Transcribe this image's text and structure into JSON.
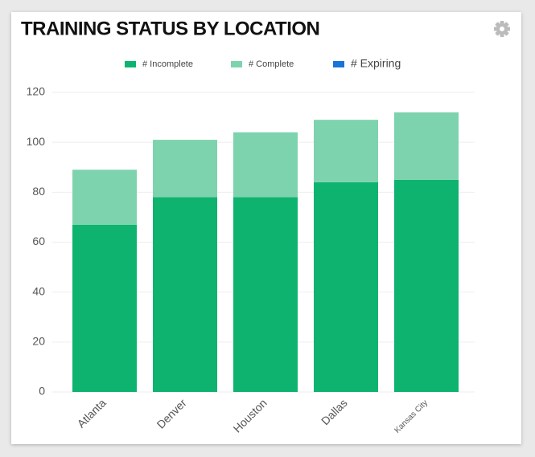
{
  "chart_data": {
    "type": "stacked_bar",
    "title": "TRAINING STATUS BY LOCATION",
    "categories": [
      "Atlanta",
      "Denver",
      "Houston",
      "Dallas",
      "Kansas City"
    ],
    "series": [
      {
        "name": "# Incomplete",
        "color": "#0db36f",
        "values": [
          67,
          78,
          78,
          84,
          85
        ]
      },
      {
        "name": "# Complete",
        "color": "#7dd3ae",
        "values": [
          22,
          23,
          26,
          25,
          27
        ]
      },
      {
        "name": "# Expiring",
        "color": "#1a73d9",
        "values": [
          0,
          0,
          0,
          0,
          0
        ]
      }
    ],
    "ylim": [
      0,
      120
    ],
    "yticks": [
      0,
      20,
      40,
      60,
      80,
      100,
      120
    ],
    "grid": true
  }
}
